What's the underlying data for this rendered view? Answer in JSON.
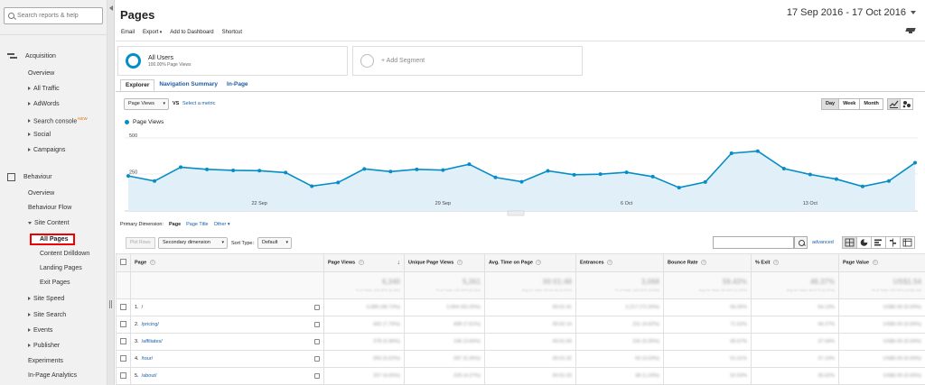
{
  "sidebar": {
    "search_placeholder": "Search reports & help",
    "acquisition": {
      "label": "Acquisition",
      "items": [
        "Overview",
        "All Traffic",
        "AdWords",
        "Search console",
        "Social",
        "Campaigns"
      ],
      "new_badge": "NEW"
    },
    "behaviour": {
      "label": "Behaviour",
      "items": [
        "Overview",
        "Behaviour Flow",
        "Site Content"
      ],
      "site_content_items": [
        "All Pages",
        "Content Drilldown",
        "Landing Pages",
        "Exit Pages"
      ],
      "after_items": [
        "Site Speed",
        "Site Search",
        "Events",
        "Publisher",
        "Experiments",
        "In-Page Analytics"
      ]
    }
  },
  "header": {
    "title": "Pages",
    "date_range": "17 Sep 2016 - 17 Oct 2016",
    "toolbar": [
      "Email",
      "Export",
      "Add to Dashboard",
      "Shortcut"
    ]
  },
  "segments": {
    "all_users": "All Users",
    "all_users_sub": "100.00% Page Views",
    "add_segment": "+ Add Segment"
  },
  "tabs": [
    "Explorer",
    "Navigation Summary",
    "In-Page"
  ],
  "chart_controls": {
    "metric": "Page Views",
    "vs": "VS",
    "select_metric": "Select a metric",
    "granularity": [
      "Day",
      "Week",
      "Month"
    ],
    "legend": "Page Views"
  },
  "chart_data": {
    "type": "area",
    "title": "",
    "series": [
      {
        "name": "Page Views",
        "values": [
          240,
          205,
          300,
          285,
          278,
          276,
          263,
          170,
          195,
          288,
          270,
          285,
          280,
          320,
          230,
          200,
          275,
          248,
          252,
          265,
          235,
          160,
          198,
          395,
          410,
          290,
          250,
          218,
          168,
          205,
          330
        ]
      }
    ],
    "y_ticks": [
      "500",
      "250"
    ],
    "x_ticks": [
      "22 Sep",
      "29 Sep",
      "6 Oct",
      "13 Oct"
    ],
    "ylim": [
      0,
      500
    ]
  },
  "primary_dimension": {
    "label": "Primary Dimension:",
    "current": "Page",
    "options": [
      "Page Title",
      "Other"
    ]
  },
  "table_controls": {
    "plot_rows": "Plot Rows",
    "secondary_dimension": "Secondary dimension",
    "sort_type_label": "Sort Type:",
    "sort_type": "Default",
    "advanced": "advanced"
  },
  "table": {
    "columns": [
      "Page",
      "Page Views",
      "Unique Page Views",
      "Avg. Time on Page",
      "Entrances",
      "Bounce Rate",
      "% Exit",
      "Page Value"
    ],
    "summary": [
      "6,340",
      "5,361",
      "00:01:48",
      "3,068",
      "59.43%",
      "48.37%",
      "US$1.54"
    ],
    "summary_sub": [
      "% of Total: 100.00% (6,340)",
      "% of Total: 100.00% (5,361)",
      "Avg for View: 00:01:48 (0.00%)",
      "% of Total: 100.00% (3,068)",
      "Avg for View: 59.43% (0.00%)",
      "Avg for View: 48.37% (0.00%)",
      "% of Total: 100.00% (US$1.54)"
    ],
    "rows": [
      {
        "num": "1.",
        "page": "/",
        "values": [
          "3,089 (48.72%)",
          "2,694 (50.25%)",
          "00:01:41",
          "2,217 (72.26%)",
          "55.05%",
          "54.13%",
          "US$0.00 (0.00%)"
        ]
      },
      {
        "num": "2.",
        "page": "/pricing/",
        "values": [
          "492 (7.76%)",
          "408 (7.61%)",
          "00:02:14",
          "151 (4.92%)",
          "71.52%",
          "44.27%",
          "US$0.00 (0.00%)"
        ]
      },
      {
        "num": "3.",
        "page": "/affiliates/",
        "values": [
          "378 (5.96%)",
          "196 (3.66%)",
          "00:01:59",
          "155 (5.05%)",
          "65.67%",
          "37.04%",
          "US$0.00 (0.00%)"
        ]
      },
      {
        "num": "4.",
        "page": "/tour/",
        "values": [
          "350 (5.52%)",
          "287 (5.35%)",
          "00:01:32",
          "93 (3.03%)",
          "51.61%",
          "37.14%",
          "US$0.00 (0.00%)"
        ]
      },
      {
        "num": "5.",
        "page": "/about/",
        "values": [
          "257 (4.05%)",
          "229 (4.27%)",
          "00:01:33",
          "38 (1.24%)",
          "52.63%",
          "35.02%",
          "US$0.00 (0.00%)"
        ]
      }
    ]
  }
}
